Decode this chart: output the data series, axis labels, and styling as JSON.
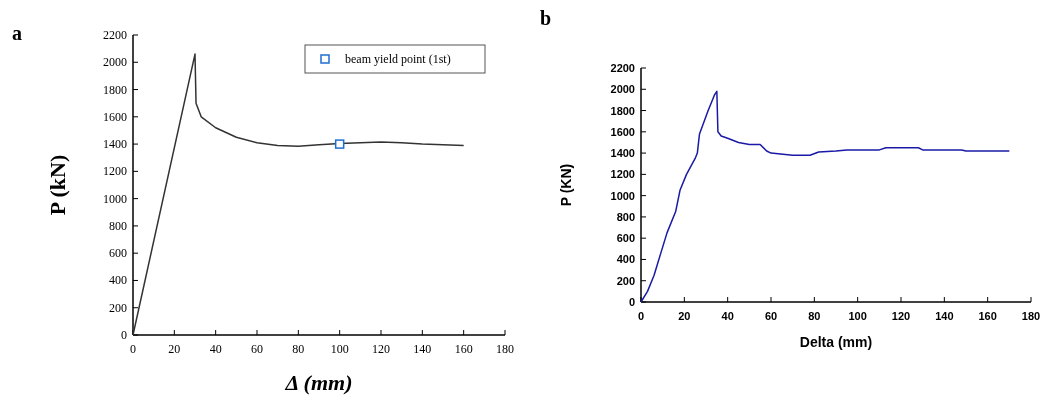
{
  "chart_data": [
    {
      "type": "line",
      "title": "a",
      "xlabel": "Δ (mm)",
      "ylabel": "P (kN)",
      "xlim": [
        0,
        180
      ],
      "ylim": [
        0,
        2200
      ],
      "xticks": [
        0,
        20,
        40,
        60,
        80,
        100,
        120,
        140,
        160,
        180
      ],
      "yticks": [
        0,
        200,
        400,
        600,
        800,
        1000,
        1200,
        1400,
        1600,
        1800,
        2000,
        2200
      ],
      "grid": false,
      "legend": "top right",
      "series": [
        {
          "color": "#333333",
          "marker": "none",
          "x": [
            0,
            30,
            30.5,
            33,
            40,
            50,
            60,
            70,
            80,
            90,
            100,
            110,
            120,
            130,
            140,
            150,
            160
          ],
          "values": [
            0,
            2060,
            1700,
            1600,
            1520,
            1450,
            1410,
            1390,
            1385,
            1395,
            1405,
            1410,
            1415,
            1410,
            1400,
            1395,
            1390
          ]
        },
        {
          "type": "scatter",
          "name": "beam yield point (1st)",
          "color": "#1f6fd0",
          "marker": "square",
          "x": [
            100
          ],
          "values": [
            1400
          ]
        }
      ]
    },
    {
      "type": "line",
      "title": "b",
      "xlabel": "Delta (mm)",
      "ylabel": "P (KN)",
      "xlim": [
        0,
        180
      ],
      "ylim": [
        0,
        2200
      ],
      "xticks": [
        0,
        20,
        40,
        60,
        80,
        100,
        120,
        140,
        160,
        180
      ],
      "yticks": [
        0,
        200,
        400,
        600,
        800,
        1000,
        1200,
        1400,
        1600,
        1800,
        2000,
        2200
      ],
      "grid": false,
      "series": [
        {
          "color": "#1a1aa6",
          "marker": "none",
          "x": [
            0,
            3,
            6,
            9,
            12,
            16,
            18,
            21,
            25,
            26,
            27,
            31,
            34,
            35,
            35.5,
            37,
            40,
            45,
            50,
            55,
            58,
            60,
            70,
            78,
            82,
            90,
            95,
            110,
            113,
            128,
            130,
            148,
            150,
            170
          ],
          "values": [
            0,
            100,
            250,
            450,
            650,
            850,
            1050,
            1200,
            1350,
            1400,
            1580,
            1800,
            1950,
            1980,
            1600,
            1560,
            1540,
            1500,
            1480,
            1480,
            1420,
            1400,
            1380,
            1380,
            1410,
            1420,
            1430,
            1430,
            1450,
            1450,
            1430,
            1430,
            1420,
            1420
          ]
        }
      ]
    }
  ]
}
